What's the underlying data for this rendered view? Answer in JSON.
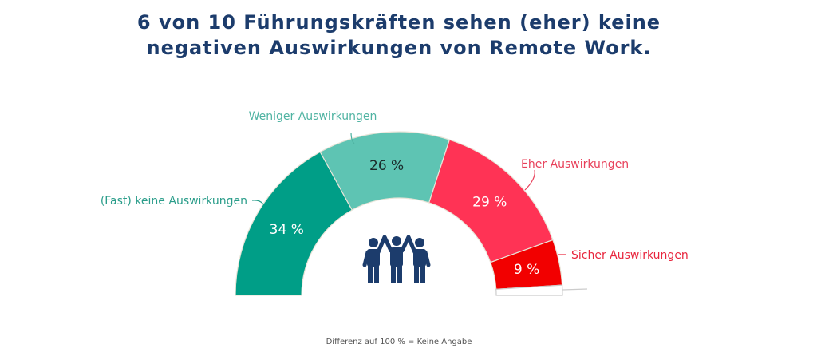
{
  "chart_data": {
    "type": "pie",
    "variant": "semi-donut",
    "title_lines": [
      "6 von 10 Führungskräften sehen (eher) keine",
      "negativen Auswirkungen von Remote Work."
    ],
    "slices": [
      {
        "name": "(Fast) keine Auswirkungen",
        "value": 34,
        "label": "34 %",
        "color": "#009e87",
        "label_color": "#2a9d8a",
        "pct_color": "#ffffff"
      },
      {
        "name": "Weniger Auswirkungen",
        "value": 26,
        "label": "26 %",
        "color": "#5ec4b3",
        "label_color": "#4fb3a2",
        "pct_color": "#1a2a2a"
      },
      {
        "name": "Eher Auswirkungen",
        "value": 29,
        "label": "29 %",
        "color": "#ff3355",
        "label_color": "#e8405a",
        "pct_color": "#ffffff"
      },
      {
        "name": "Sicher Auswirkungen",
        "value": 9,
        "label": "9 %",
        "color": "#f20000",
        "label_color": "#e8253d",
        "pct_color": "#ffffff"
      },
      {
        "name": "Keine Angabe",
        "value": 2,
        "label": "",
        "color": "#ffffff"
      }
    ],
    "footnote": "Differenz auf 100 % = Keine Angabe",
    "center_icon": "people-team-icon",
    "icon_color": "#1c3c6c"
  }
}
